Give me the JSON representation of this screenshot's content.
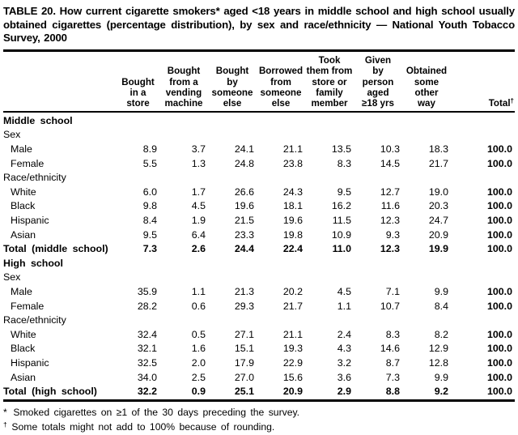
{
  "title": "TABLE 20. How current cigarette smokers* aged <18 years in middle school and high school usually obtained cigarettes (percentage distribution), by sex and race/ethnicity — National Youth Tobacco Survey, 2000",
  "table": {
    "columns": [
      {
        "lines": [
          "Bought",
          "in a",
          "store"
        ]
      },
      {
        "lines": [
          "Bought",
          "from a",
          "vending",
          "machine"
        ]
      },
      {
        "lines": [
          "Bought",
          "by",
          "someone",
          "else"
        ]
      },
      {
        "lines": [
          "Borrowed",
          "from",
          "someone",
          "else"
        ]
      },
      {
        "lines": [
          "Took",
          "them from",
          "store or",
          "family",
          "member"
        ]
      },
      {
        "lines": [
          "Given",
          "by",
          "person",
          "aged",
          "≥18 yrs"
        ]
      },
      {
        "lines": [
          "Obtained",
          "some",
          "other",
          "way"
        ]
      },
      {
        "lines": [
          "Total"
        ],
        "sup": "†",
        "align": "right"
      }
    ],
    "rows": [
      {
        "type": "section",
        "label": "Middle school"
      },
      {
        "type": "subsection",
        "label": "Sex"
      },
      {
        "type": "data",
        "indent": true,
        "label": "Male",
        "values": [
          "8.9",
          "3.7",
          "24.1",
          "21.1",
          "13.5",
          "10.3",
          "18.3",
          "100.0"
        ]
      },
      {
        "type": "data",
        "indent": true,
        "label": "Female",
        "values": [
          "5.5",
          "1.3",
          "24.8",
          "23.8",
          "8.3",
          "14.5",
          "21.7",
          "100.0"
        ]
      },
      {
        "type": "subsection",
        "label": "Race/ethnicity"
      },
      {
        "type": "data",
        "indent": true,
        "label": "White",
        "values": [
          "6.0",
          "1.7",
          "26.6",
          "24.3",
          "9.5",
          "12.7",
          "19.0",
          "100.0"
        ]
      },
      {
        "type": "data",
        "indent": true,
        "label": "Black",
        "values": [
          "9.8",
          "4.5",
          "19.6",
          "18.1",
          "16.2",
          "11.6",
          "20.3",
          "100.0"
        ]
      },
      {
        "type": "data",
        "indent": true,
        "label": "Hispanic",
        "values": [
          "8.4",
          "1.9",
          "21.5",
          "19.6",
          "11.5",
          "12.3",
          "24.7",
          "100.0"
        ]
      },
      {
        "type": "data",
        "indent": true,
        "label": "Asian",
        "values": [
          "9.5",
          "6.4",
          "23.3",
          "19.8",
          "10.9",
          "9.3",
          "20.9",
          "100.0"
        ]
      },
      {
        "type": "total",
        "label": "Total (middle school)",
        "values": [
          "7.3",
          "2.6",
          "24.4",
          "22.4",
          "11.0",
          "12.3",
          "19.9",
          "100.0"
        ]
      },
      {
        "type": "section",
        "label": "High school"
      },
      {
        "type": "subsection",
        "label": "Sex"
      },
      {
        "type": "data",
        "indent": true,
        "label": "Male",
        "values": [
          "35.9",
          "1.1",
          "21.3",
          "20.2",
          "4.5",
          "7.1",
          "9.9",
          "100.0"
        ]
      },
      {
        "type": "data",
        "indent": true,
        "label": "Female",
        "values": [
          "28.2",
          "0.6",
          "29.3",
          "21.7",
          "1.1",
          "10.7",
          "8.4",
          "100.0"
        ]
      },
      {
        "type": "subsection",
        "label": "Race/ethnicity"
      },
      {
        "type": "data",
        "indent": true,
        "label": "White",
        "values": [
          "32.4",
          "0.5",
          "27.1",
          "21.1",
          "2.4",
          "8.3",
          "8.2",
          "100.0"
        ]
      },
      {
        "type": "data",
        "indent": true,
        "label": "Black",
        "values": [
          "32.1",
          "1.6",
          "15.1",
          "19.3",
          "4.3",
          "14.6",
          "12.9",
          "100.0"
        ]
      },
      {
        "type": "data",
        "indent": true,
        "label": "Hispanic",
        "values": [
          "32.5",
          "2.0",
          "17.9",
          "22.9",
          "3.2",
          "8.7",
          "12.8",
          "100.0"
        ]
      },
      {
        "type": "data",
        "indent": true,
        "label": "Asian",
        "values": [
          "34.0",
          "2.5",
          "27.0",
          "15.6",
          "3.6",
          "7.3",
          "9.9",
          "100.0"
        ]
      },
      {
        "type": "total",
        "label": "Total (high school)",
        "values": [
          "32.2",
          "0.9",
          "25.1",
          "20.9",
          "2.9",
          "8.8",
          "9.2",
          "100.0"
        ]
      }
    ]
  },
  "footnotes": [
    {
      "marker": "*",
      "text": "Smoked cigarettes on ≥1 of the 30 days preceding the survey."
    },
    {
      "marker": "†",
      "text": "Some totals might not add to 100% because of rounding."
    }
  ]
}
